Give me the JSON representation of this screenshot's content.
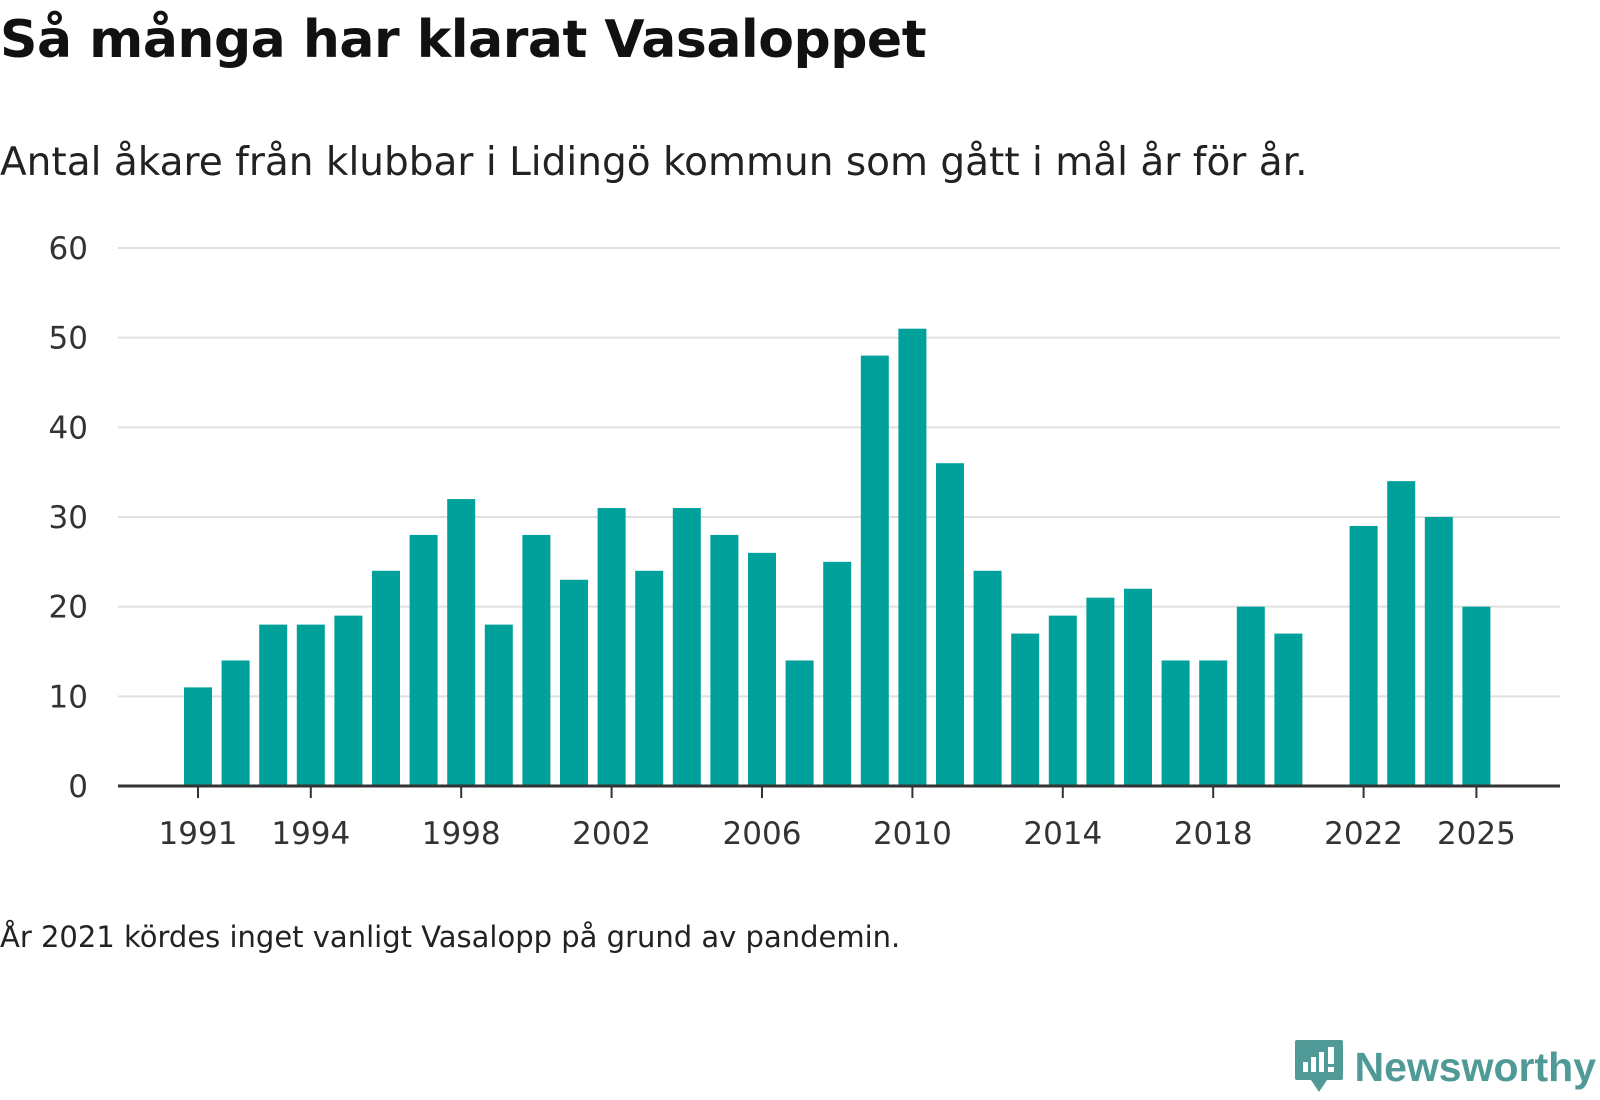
{
  "header": {
    "title": "Så många har klarat Vasaloppet",
    "subtitle": "Antal åkare från klubbar i Lidingö kommun som gått i mål år för år."
  },
  "footer": {
    "note": "År 2021 kördes inget vanligt Vasalopp på grund av pandemin.",
    "brand": "Newsworthy"
  },
  "colors": {
    "bar": "#00a19a",
    "grid": "#e0e0e0",
    "axis": "#333333",
    "brand": "#4f9a97"
  },
  "chart_data": {
    "type": "bar",
    "title": "Så många har klarat Vasaloppet",
    "subtitle": "Antal åkare från klubbar i Lidingö kommun som gått i mål år för år.",
    "xlabel": "",
    "ylabel": "",
    "ylim": [
      0,
      60
    ],
    "yticks": [
      0,
      10,
      20,
      30,
      40,
      50,
      60
    ],
    "xticks": [
      1991,
      1994,
      1998,
      2002,
      2006,
      2010,
      2014,
      2018,
      2022,
      2025
    ],
    "grid": true,
    "categories": [
      1991,
      1992,
      1993,
      1994,
      1995,
      1996,
      1997,
      1998,
      1999,
      2000,
      2001,
      2002,
      2003,
      2004,
      2005,
      2006,
      2007,
      2008,
      2009,
      2010,
      2011,
      2012,
      2013,
      2014,
      2015,
      2016,
      2017,
      2018,
      2019,
      2020,
      2021,
      2022,
      2023,
      2024,
      2025
    ],
    "values": [
      11,
      14,
      18,
      18,
      19,
      24,
      28,
      32,
      18,
      28,
      23,
      31,
      24,
      31,
      28,
      26,
      14,
      25,
      48,
      51,
      36,
      24,
      17,
      19,
      21,
      22,
      14,
      14,
      20,
      17,
      null,
      29,
      34,
      30,
      20
    ]
  }
}
